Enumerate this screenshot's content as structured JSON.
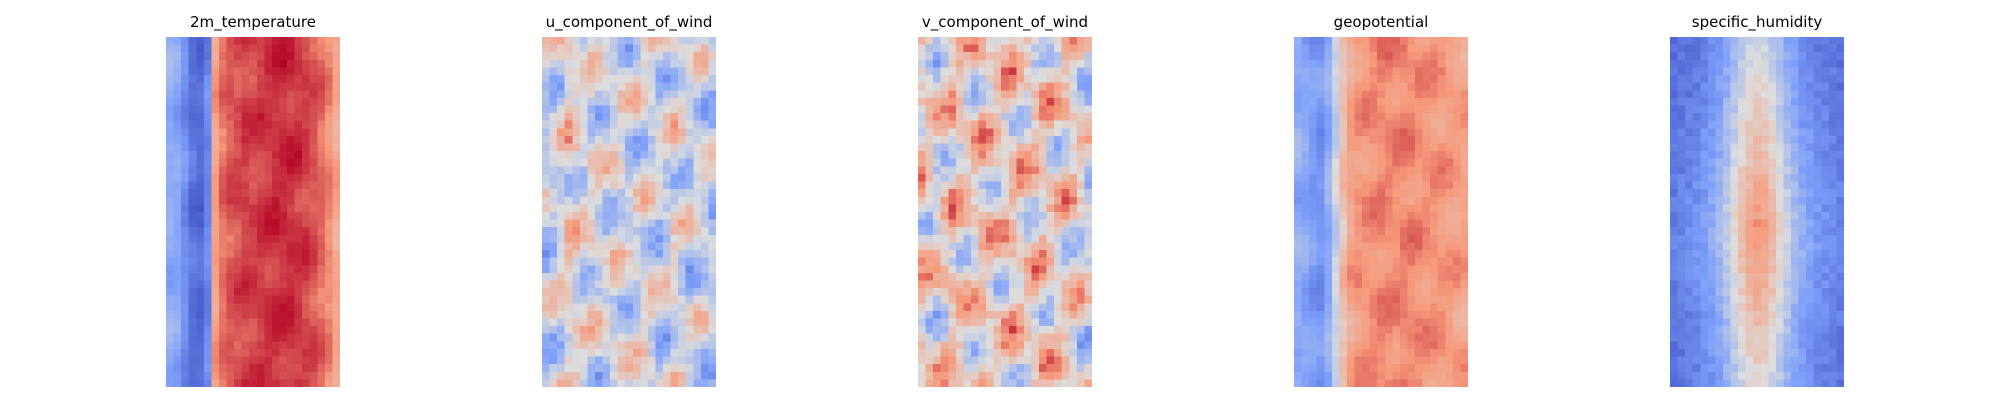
{
  "figure": {
    "panels": [
      {
        "title": "2m_temperature"
      },
      {
        "title": "u_component_of_wind"
      },
      {
        "title": "v_component_of_wind"
      },
      {
        "title": "geopotential"
      },
      {
        "title": "specific_humidity"
      }
    ]
  },
  "chart_data": [
    {
      "type": "heatmap",
      "title": "2m_temperature",
      "colormap": "coolwarm",
      "axes_visible": false,
      "grid": false,
      "pattern": "cool-left-edge-strip-then-warm-band-peaking-in-center",
      "column_profile": [
        0.3,
        0.28,
        0.2,
        0.12,
        0.1,
        0.18,
        0.72,
        0.82,
        0.86,
        0.88,
        0.9,
        0.9,
        0.91,
        0.92,
        0.93,
        0.93,
        0.93,
        0.92,
        0.9,
        0.87,
        0.83,
        0.78,
        0.7
      ]
    },
    {
      "type": "heatmap",
      "title": "u_component_of_wind",
      "colormap": "coolwarm",
      "axes_visible": false,
      "grid": false,
      "pattern": "near-neutral-with-scattered-warm-and-cool-blobs",
      "column_profile": [
        0.42,
        0.45,
        0.5,
        0.56,
        0.52,
        0.48,
        0.5,
        0.47,
        0.46,
        0.5,
        0.48,
        0.45,
        0.47,
        0.5,
        0.48,
        0.44,
        0.46,
        0.5,
        0.47,
        0.45,
        0.46,
        0.44,
        0.42
      ]
    },
    {
      "type": "heatmap",
      "title": "v_component_of_wind",
      "colormap": "coolwarm",
      "axes_visible": false,
      "grid": false,
      "pattern": "mixed-turbulent-warm-and-cool-swirls",
      "column_profile": [
        0.58,
        0.55,
        0.52,
        0.56,
        0.6,
        0.58,
        0.55,
        0.57,
        0.6,
        0.58,
        0.56,
        0.58,
        0.6,
        0.57,
        0.55,
        0.58,
        0.6,
        0.57,
        0.55,
        0.58,
        0.56,
        0.52,
        0.48
      ]
    },
    {
      "type": "heatmap",
      "title": "geopotential",
      "colormap": "coolwarm",
      "axes_visible": false,
      "grid": false,
      "pattern": "cool-left-third-warm-right-two-thirds",
      "column_profile": [
        0.3,
        0.28,
        0.24,
        0.22,
        0.3,
        0.45,
        0.62,
        0.72,
        0.75,
        0.76,
        0.77,
        0.78,
        0.78,
        0.78,
        0.79,
        0.78,
        0.77,
        0.76,
        0.76,
        0.75,
        0.74,
        0.73,
        0.72
      ]
    },
    {
      "type": "heatmap",
      "title": "specific_humidity",
      "colormap": "coolwarm",
      "axes_visible": false,
      "grid": false,
      "pattern": "cool-background-with-central-warm-plume",
      "column_profile": [
        0.16,
        0.18,
        0.2,
        0.22,
        0.26,
        0.3,
        0.36,
        0.44,
        0.54,
        0.64,
        0.72,
        0.76,
        0.74,
        0.66,
        0.56,
        0.46,
        0.38,
        0.32,
        0.28,
        0.24,
        0.22,
        0.2,
        0.18
      ]
    }
  ]
}
